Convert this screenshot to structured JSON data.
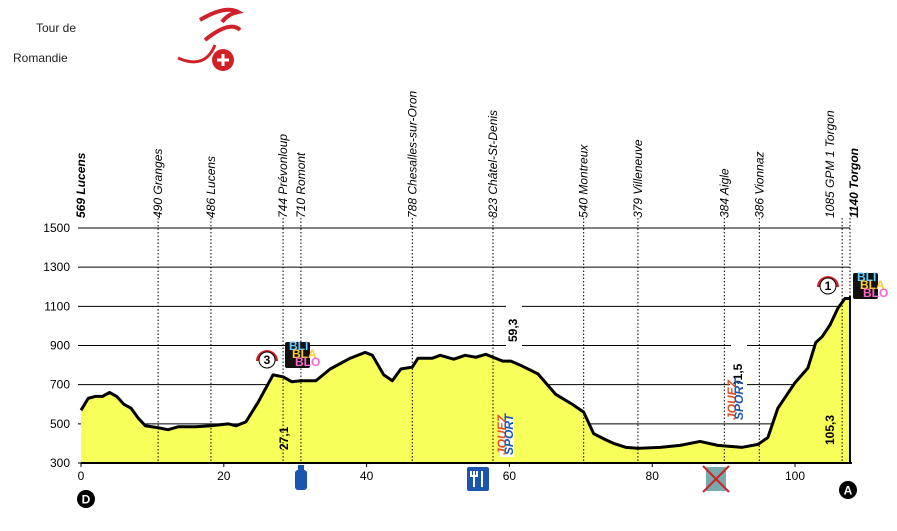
{
  "header": {
    "logo_line1": "Tour de",
    "logo_line2": "Romandie"
  },
  "chart_data": {
    "type": "area",
    "x": [
      0,
      1,
      2,
      3,
      4,
      5,
      6,
      7,
      8,
      9,
      10.8,
      12.2,
      13.6,
      16.1,
      18.2,
      20.6,
      21.7,
      23.1,
      24.8,
      26.9,
      28.3,
      29.5,
      30.8,
      32.9,
      34.9,
      37.7,
      39.8,
      40.8,
      42.4,
      43.6,
      44.8,
      46.4,
      47.2,
      49.2,
      50.3,
      52.2,
      53.8,
      55.3,
      56.7,
      57.7,
      59.1,
      60.2,
      61.5,
      64,
      66.5,
      68.8,
      70.4,
      71.8,
      73.4,
      74.6,
      76.3,
      78,
      81.1,
      83.9,
      86.7,
      89.2,
      90.9,
      92.6,
      94.8,
      96.2,
      97.6,
      100,
      101.8,
      102.9,
      103.8,
      104.9,
      106,
      107,
      107.7
    ],
    "series": [
      {
        "color": "#f7ff5a",
        "values": [
          569,
          630,
          640,
          640,
          660,
          640,
          600,
          580,
          530,
          490,
          480,
          470,
          485,
          485,
          490,
          500,
          490,
          510,
          610,
          750,
          740,
          715,
          720,
          720,
          780,
          835,
          865,
          850,
          750,
          720,
          780,
          790,
          835,
          835,
          850,
          830,
          850,
          840,
          855,
          840,
          820,
          820,
          800,
          755,
          650,
          600,
          560,
          450,
          420,
          400,
          380,
          375,
          380,
          390,
          410,
          390,
          385,
          380,
          395,
          430,
          580,
          710,
          785,
          915,
          945,
          1005,
          1090,
          1140,
          1140
        ]
      }
    ],
    "xlim": [
      0,
      107.7
    ],
    "xticks": [
      0,
      20,
      40,
      60,
      80,
      100
    ],
    "ylim": [
      300,
      1500
    ],
    "yticks": [
      300,
      500,
      700,
      900,
      1100,
      1300,
      1500
    ],
    "locations": [
      {
        "label": "569 Lucens",
        "km": 0,
        "bold": true
      },
      {
        "label": "490 Granges",
        "km": 10.8
      },
      {
        "label": "486 Lucens",
        "km": 18.2
      },
      {
        "label": "744 Prévonloup",
        "km": 28.3
      },
      {
        "label": "710 Romont",
        "km": 30.8
      },
      {
        "label": "788 Chesalles-sur-Oron",
        "km": 46.4
      },
      {
        "label": "823 Châtel-St-Denis",
        "km": 57.7
      },
      {
        "label": "540 Montreux",
        "km": 70.4
      },
      {
        "label": "379 Villeneuve",
        "km": 78.0
      },
      {
        "label": "384 Aigle",
        "km": 90.1
      },
      {
        "label": "386 Vionnaz",
        "km": 95.0
      },
      {
        "label": "1085 GPM 1 Torgon",
        "km": 106.6
      },
      {
        "label": "1140 Torgon",
        "km": 107.7,
        "bold": true
      }
    ],
    "annotations": [
      "27,1",
      "59,3",
      "91,5",
      "105,3"
    ],
    "climbs": [
      "3",
      "1"
    ],
    "bonus_badge": [
      "BLI",
      "BLA",
      "BLO"
    ],
    "sprint_badge": [
      "JOUEZ",
      "SPORT"
    ],
    "start_marker": "D",
    "finish_marker": "A"
  }
}
